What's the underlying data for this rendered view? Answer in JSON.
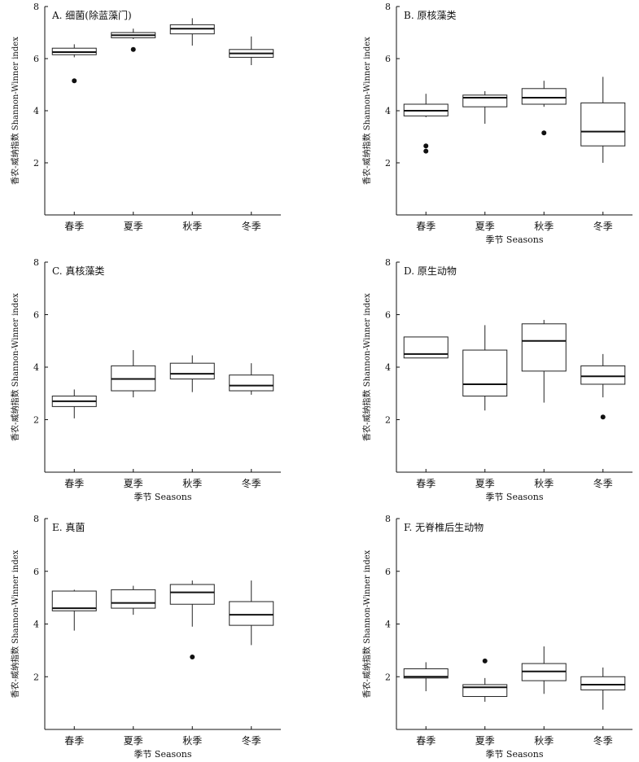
{
  "chart_data": [
    {
      "type": "box",
      "title": "A. 细菌(除蓝藻门)",
      "xlabel": "",
      "ylabel": "香农-威纳指数 Shannon-Winner index",
      "ylim": [
        0,
        8
      ],
      "yticks": [
        "2",
        "4",
        "6",
        "8"
      ],
      "categories": [
        "春季",
        "夏季",
        "秋季",
        "冬季"
      ],
      "boxes": [
        {
          "min": 6.05,
          "q1": 6.15,
          "median": 6.25,
          "q3": 6.4,
          "max": 6.55,
          "outliers": [
            5.15
          ]
        },
        {
          "min": 6.75,
          "q1": 6.8,
          "median": 6.9,
          "q3": 7.0,
          "max": 7.15,
          "outliers": [
            6.35
          ]
        },
        {
          "min": 6.5,
          "q1": 6.95,
          "median": 7.15,
          "q3": 7.3,
          "max": 7.55,
          "outliers": []
        },
        {
          "min": 5.75,
          "q1": 6.05,
          "median": 6.2,
          "q3": 6.35,
          "max": 6.85,
          "outliers": []
        }
      ]
    },
    {
      "type": "box",
      "title": "B. 原核藻类",
      "xlabel": "季节 Seasons",
      "ylabel": "香农-威纳指数 Shannon-Winner index",
      "ylim": [
        0,
        8
      ],
      "yticks": [
        "2",
        "4",
        "6",
        "8"
      ],
      "categories": [
        "春季",
        "夏季",
        "秋季",
        "冬季"
      ],
      "boxes": [
        {
          "min": 3.75,
          "q1": 3.8,
          "median": 4.0,
          "q3": 4.25,
          "max": 4.65,
          "outliers": [
            2.65,
            2.45
          ]
        },
        {
          "min": 3.5,
          "q1": 4.15,
          "median": 4.5,
          "q3": 4.6,
          "max": 4.75,
          "outliers": []
        },
        {
          "min": 4.15,
          "q1": 4.25,
          "median": 4.5,
          "q3": 4.85,
          "max": 5.15,
          "outliers": [
            3.15
          ]
        },
        {
          "min": 2.0,
          "q1": 2.65,
          "median": 3.2,
          "q3": 4.3,
          "max": 5.3,
          "outliers": []
        }
      ]
    },
    {
      "type": "box",
      "title": "C. 真核藻类",
      "xlabel": "季节 Seasons",
      "ylabel": "香农-威纳指数 Shannon-Winner index",
      "ylim": [
        0,
        8
      ],
      "yticks": [
        "2",
        "4",
        "6",
        "8"
      ],
      "categories": [
        "春季",
        "夏季",
        "秋季",
        "冬季"
      ],
      "boxes": [
        {
          "min": 2.05,
          "q1": 2.5,
          "median": 2.7,
          "q3": 2.9,
          "max": 3.15,
          "outliers": []
        },
        {
          "min": 2.85,
          "q1": 3.1,
          "median": 3.55,
          "q3": 4.05,
          "max": 4.65,
          "outliers": []
        },
        {
          "min": 3.05,
          "q1": 3.55,
          "median": 3.75,
          "q3": 4.15,
          "max": 4.45,
          "outliers": []
        },
        {
          "min": 2.95,
          "q1": 3.1,
          "median": 3.3,
          "q3": 3.7,
          "max": 4.15,
          "outliers": []
        }
      ]
    },
    {
      "type": "box",
      "title": "D. 原生动物",
      "xlabel": "季节 Seasons",
      "ylabel": "香农-威纳指数 Shannon-Winner index",
      "ylim": [
        0,
        8
      ],
      "yticks": [
        "2",
        "4",
        "6",
        "8"
      ],
      "categories": [
        "春季",
        "夏季",
        "秋季",
        "冬季"
      ],
      "boxes": [
        {
          "min": 4.35,
          "q1": 4.35,
          "median": 4.5,
          "q3": 5.15,
          "max": 5.15,
          "outliers": []
        },
        {
          "min": 2.35,
          "q1": 2.9,
          "median": 3.35,
          "q3": 4.65,
          "max": 5.6,
          "outliers": []
        },
        {
          "min": 2.65,
          "q1": 3.85,
          "median": 5.0,
          "q3": 5.65,
          "max": 5.8,
          "outliers": []
        },
        {
          "min": 2.85,
          "q1": 3.35,
          "median": 3.65,
          "q3": 4.05,
          "max": 4.5,
          "outliers": [
            2.1
          ]
        }
      ]
    },
    {
      "type": "box",
      "title": "E. 真菌",
      "xlabel": "季节 Seasons",
      "ylabel": "香农-威纳指数 Shannon-Winner index",
      "ylim": [
        0,
        8
      ],
      "yticks": [
        "2",
        "4",
        "6",
        "8"
      ],
      "categories": [
        "春季",
        "夏季",
        "秋季",
        "冬季"
      ],
      "boxes": [
        {
          "min": 3.75,
          "q1": 4.5,
          "median": 4.6,
          "q3": 5.25,
          "max": 5.3,
          "outliers": []
        },
        {
          "min": 4.35,
          "q1": 4.6,
          "median": 4.8,
          "q3": 5.3,
          "max": 5.45,
          "outliers": []
        },
        {
          "min": 3.9,
          "q1": 4.75,
          "median": 5.2,
          "q3": 5.5,
          "max": 5.65,
          "outliers": [
            2.75
          ]
        },
        {
          "min": 3.2,
          "q1": 3.95,
          "median": 4.35,
          "q3": 4.85,
          "max": 5.65,
          "outliers": []
        }
      ]
    },
    {
      "type": "box",
      "title": "F. 无脊椎后生动物",
      "xlabel": "季节 Seasons",
      "ylabel": "香农-威纳指数 Shannon-Winner index",
      "ylim": [
        0,
        8
      ],
      "yticks": [
        "2",
        "4",
        "6",
        "8"
      ],
      "categories": [
        "春季",
        "夏季",
        "秋季",
        "冬季"
      ],
      "boxes": [
        {
          "min": 1.45,
          "q1": 1.95,
          "median": 2.0,
          "q3": 2.3,
          "max": 2.55,
          "outliers": []
        },
        {
          "min": 1.05,
          "q1": 1.25,
          "median": 1.6,
          "q3": 1.7,
          "max": 1.95,
          "outliers": [
            2.6
          ]
        },
        {
          "min": 1.35,
          "q1": 1.85,
          "median": 2.2,
          "q3": 2.5,
          "max": 3.15,
          "outliers": []
        },
        {
          "min": 0.75,
          "q1": 1.5,
          "median": 1.7,
          "q3": 2.0,
          "max": 2.35,
          "outliers": []
        }
      ]
    }
  ]
}
